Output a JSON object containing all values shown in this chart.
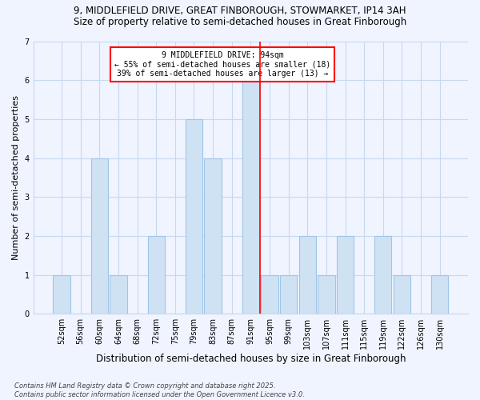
{
  "title_line1": "9, MIDDLEFIELD DRIVE, GREAT FINBOROUGH, STOWMARKET, IP14 3AH",
  "title_line2": "Size of property relative to semi-detached houses in Great Finborough",
  "xlabel": "Distribution of semi-detached houses by size in Great Finborough",
  "ylabel": "Number of semi-detached properties",
  "bins": [
    "52sqm",
    "56sqm",
    "60sqm",
    "64sqm",
    "68sqm",
    "72sqm",
    "75sqm",
    "79sqm",
    "83sqm",
    "87sqm",
    "91sqm",
    "95sqm",
    "99sqm",
    "103sqm",
    "107sqm",
    "111sqm",
    "115sqm",
    "119sqm",
    "122sqm",
    "126sqm",
    "130sqm"
  ],
  "values": [
    1,
    0,
    4,
    1,
    0,
    2,
    0,
    5,
    4,
    0,
    6,
    1,
    1,
    2,
    1,
    2,
    0,
    2,
    1,
    0,
    1
  ],
  "bar_color": "#cfe2f3",
  "bar_edgecolor": "#9fc5e8",
  "vline_index": 10.5,
  "vline_color": "red",
  "annotation_text": "9 MIDDLEFIELD DRIVE: 94sqm\n← 55% of semi-detached houses are smaller (18)\n39% of semi-detached houses are larger (13) →",
  "annotation_box_color": "white",
  "annotation_box_edgecolor": "red",
  "ylim": [
    0,
    7
  ],
  "yticks": [
    0,
    1,
    2,
    3,
    4,
    5,
    6,
    7
  ],
  "background_color": "#f0f4ff",
  "grid_color": "#c8d8ee",
  "footnote": "Contains HM Land Registry data © Crown copyright and database right 2025.\nContains public sector information licensed under the Open Government Licence v3.0.",
  "title_fontsize": 8.5,
  "subtitle_fontsize": 8.5,
  "xlabel_fontsize": 8.5,
  "ylabel_fontsize": 8,
  "tick_fontsize": 7,
  "annotation_fontsize": 7,
  "footnote_fontsize": 6
}
